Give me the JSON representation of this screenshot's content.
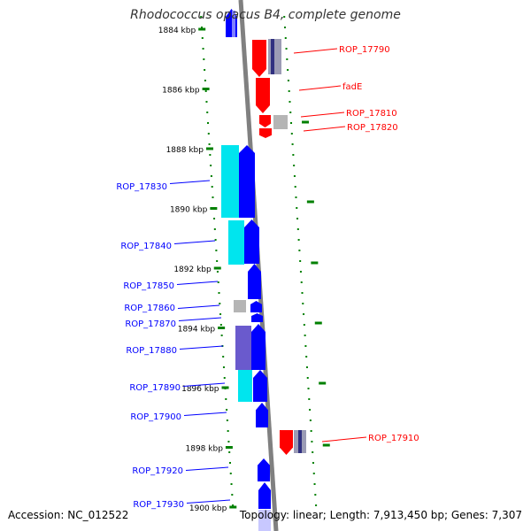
{
  "title": "Rhodococcus opacus B4, complete genome",
  "footer": {
    "accession": "Accession: NC_012522",
    "summary": "Topology: linear; Length: 7,913,450 bp; Genes: 7,307"
  },
  "axis": {
    "tick_labels": [
      "1884 kbp",
      "1886 kbp",
      "1888 kbp",
      "1890 kbp",
      "1892 kbp",
      "1894 kbp",
      "1896 kbp",
      "1898 kbp",
      "1900 kbp"
    ]
  },
  "colors": {
    "forward": "#ff0000",
    "reverse": "#0000ff",
    "cyan": "#00e5ee",
    "purple": "#6a5acd",
    "grey": "#b5b5b5",
    "tick": "#008000",
    "backbone": "#808080"
  },
  "gene_labels": [
    {
      "label": "ROP_17790",
      "strand": "forward"
    },
    {
      "label": "fadE",
      "strand": "forward"
    },
    {
      "label": "ROP_17810",
      "strand": "forward"
    },
    {
      "label": "ROP_17820",
      "strand": "forward"
    },
    {
      "label": "ROP_17830",
      "strand": "reverse"
    },
    {
      "label": "ROP_17840",
      "strand": "reverse"
    },
    {
      "label": "ROP_17850",
      "strand": "reverse"
    },
    {
      "label": "ROP_17860",
      "strand": "reverse"
    },
    {
      "label": "ROP_17870",
      "strand": "reverse"
    },
    {
      "label": "ROP_17880",
      "strand": "reverse"
    },
    {
      "label": "ROP_17890",
      "strand": "reverse"
    },
    {
      "label": "ROP_17900",
      "strand": "reverse"
    },
    {
      "label": "ROP_17910",
      "strand": "forward"
    },
    {
      "label": "ROP_17920",
      "strand": "reverse"
    },
    {
      "label": "ROP_17930",
      "strand": "reverse"
    }
  ]
}
